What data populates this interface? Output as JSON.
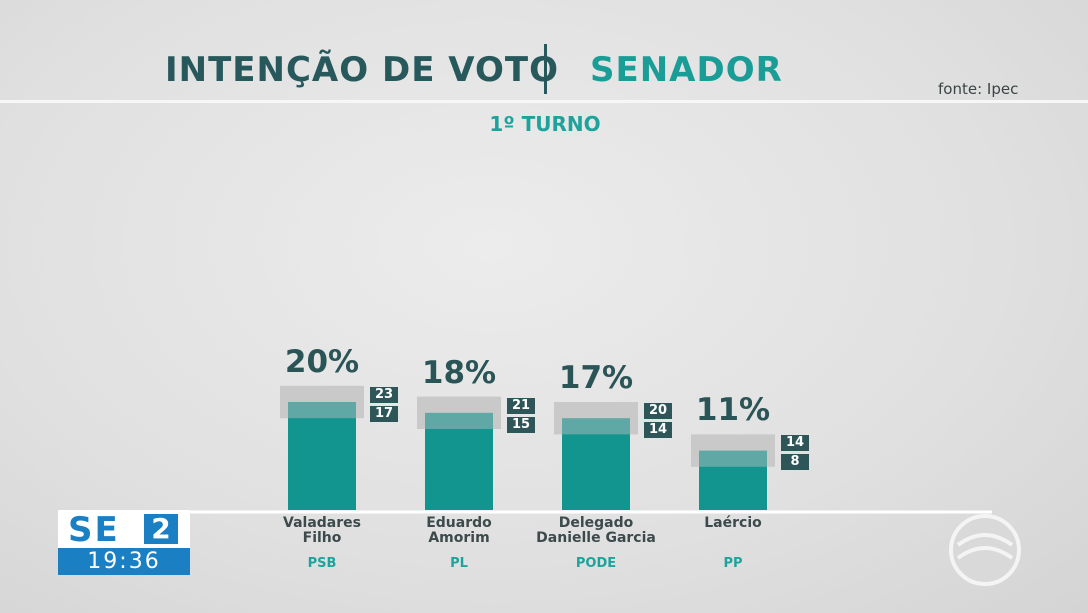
{
  "header": {
    "title": "INTENÇÃO DE VOTO",
    "subject": "SENADOR",
    "source": "fonte: Ipec"
  },
  "chart_data": {
    "type": "bar",
    "subtitle": "1º TURNO",
    "categories": [
      "Valadares\nFilho",
      "Eduardo\nAmorim",
      "Delegado\nDanielle Garcia",
      "Laércio"
    ],
    "parties": [
      "PSB",
      "PL",
      "PODE",
      "PP"
    ],
    "values": [
      20,
      18,
      17,
      11
    ],
    "value_labels": [
      "20%",
      "18%",
      "17%",
      "11%"
    ],
    "upper": [
      23,
      21,
      20,
      14
    ],
    "lower": [
      17,
      15,
      14,
      8
    ],
    "color": "#12958f",
    "range_color": "#5fa8a5",
    "band_color": "#c9c9c9"
  },
  "broadcast": {
    "channel": "SE",
    "channel_number": "2",
    "time": "19:36"
  }
}
